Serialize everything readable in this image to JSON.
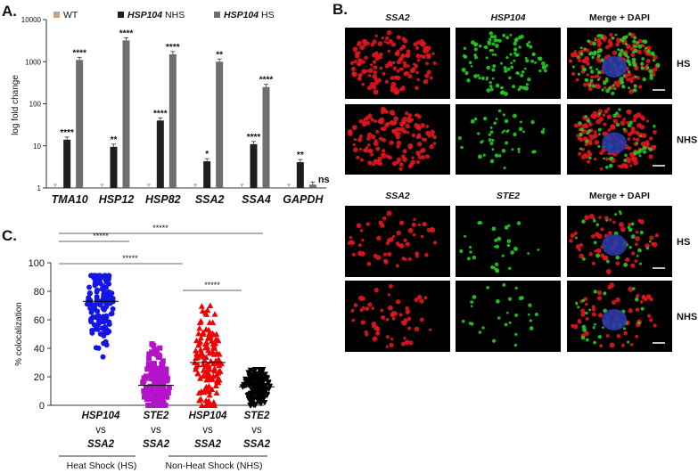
{
  "colors": {
    "wt": "#c8a27a",
    "nhs": "#1e1e1e",
    "hs": "#6e6e6e",
    "s1": "#1515e6",
    "s2": "#b414c8",
    "s3": "#f00000",
    "s4": "#000000",
    "red_signal": "#e0161e",
    "green_signal": "#22cc22",
    "blue_signal": "#2a3aa8"
  },
  "panelA": {
    "letter": "A.",
    "ylabel": "log fold change",
    "legend": [
      {
        "key": "wt",
        "a": "WT",
        "b": ""
      },
      {
        "key": "nhs",
        "a": "HSP104",
        "b": " NHS"
      },
      {
        "key": "hs",
        "a": "HSP104",
        "b": " HS"
      }
    ],
    "chart_data": {
      "type": "bar",
      "scale": "log",
      "ylim": [
        1,
        10000
      ],
      "yticks": [
        "1",
        "10",
        "100",
        "1000",
        "10000"
      ],
      "categories": [
        "TMA10",
        "HSP12",
        "HSP82",
        "SSA2",
        "SSA4",
        "GAPDH"
      ],
      "series": [
        {
          "name": "WT",
          "values": [
            1,
            1,
            1,
            1,
            1,
            1
          ]
        },
        {
          "name": "HSP104 NHS",
          "values": [
            14,
            9.5,
            40,
            4.3,
            11,
            4.1
          ]
        },
        {
          "name": "HSP104 HS",
          "values": [
            1100,
            3200,
            1500,
            1000,
            250,
            1.2
          ]
        }
      ],
      "annotations_nhs": [
        "****",
        "**",
        "****",
        "*",
        "****",
        "**"
      ],
      "annotations_hs": [
        "****",
        "****",
        "****",
        "**",
        "****",
        "ns"
      ]
    }
  },
  "panelB": {
    "letter": "B.",
    "top_headers": [
      "SSA2",
      "HSP104",
      "Merge + DAPI"
    ],
    "bottom_headers": [
      "SSA2",
      "STE2",
      "Merge + DAPI"
    ],
    "row_labels": [
      "HS",
      "NHS",
      "HS",
      "NHS"
    ]
  },
  "panelC": {
    "letter": "C.",
    "ylabel": "% colocalization",
    "chart_data": {
      "type": "scatter",
      "ylim": [
        0,
        100
      ],
      "yticks": [
        "0",
        "20",
        "40",
        "60",
        "80",
        "100"
      ],
      "groups": [
        {
          "l1": "HSP104",
          "l2": "vs",
          "l3": "SSA2",
          "mean": 73,
          "min": 34,
          "max": 91,
          "marker": "circle"
        },
        {
          "l1": "STE2",
          "l2": "vs",
          "l3": "SSA2",
          "mean": 14,
          "min": 0,
          "max": 43,
          "marker": "square"
        },
        {
          "l1": "HSP104",
          "l2": "vs",
          "l3": "SSA2",
          "mean": 30,
          "min": 0,
          "max": 70,
          "marker": "triangle"
        },
        {
          "l1": "STE2",
          "l2": "vs",
          "l3": "SSA2",
          "mean": 13,
          "min": 0,
          "max": 25,
          "marker": "triangle-down"
        }
      ],
      "significance": [
        "*****",
        "*****",
        "*****",
        "*****"
      ],
      "group_labels": [
        "Heat Shock (HS)",
        "Non-Heat Shock (NHS)"
      ]
    }
  }
}
